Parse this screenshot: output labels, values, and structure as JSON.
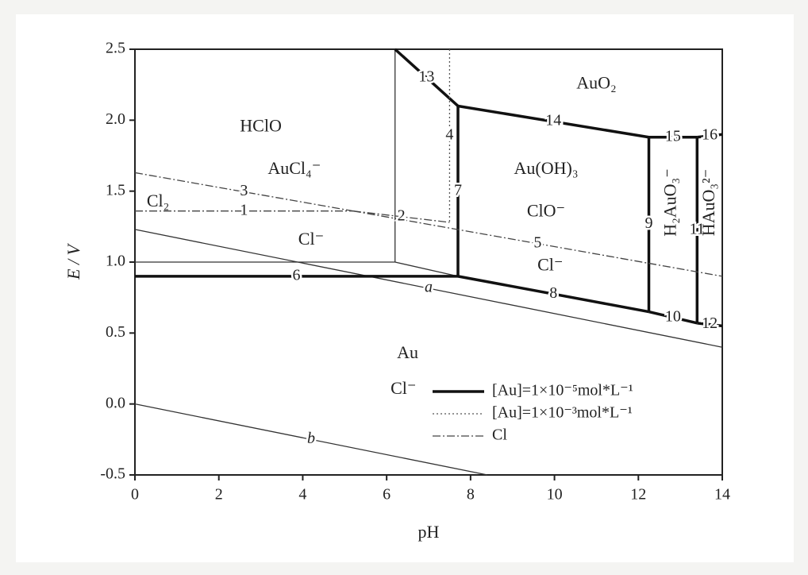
{
  "chart_data": {
    "type": "line",
    "xlabel": "pH",
    "ylabel": "E / V",
    "xlim": [
      0,
      14
    ],
    "ylim": [
      -0.5,
      2.5
    ],
    "xticks": [
      0,
      2,
      4,
      6,
      8,
      10,
      12,
      14
    ],
    "yticks": [
      2.5,
      {
        "value": 2,
        "label": "2.0"
      },
      1.5,
      {
        "value": 1,
        "label": "1.0"
      },
      0.5,
      {
        "value": 0,
        "label": "0.0"
      },
      -0.5
    ],
    "regions": [
      "HClO",
      "AuCl₄⁻",
      "Cl₂",
      "Cl⁻",
      "AuO₂",
      "Au(OH)₃",
      "ClO⁻",
      "Cl⁻",
      "Au",
      "Cl⁻",
      "H₂AuO₃⁻",
      "HAuO₃²⁻"
    ],
    "series": [
      {
        "name": "[Au]=1×10⁻⁵mol*L⁻¹",
        "color": "#111",
        "dash": "solid",
        "lines": [
          {
            "label": "6",
            "x": [
              0,
              7.7
            ],
            "y": [
              0.9,
              0.9
            ]
          },
          {
            "label": "13",
            "x": [
              6.2,
              7.7
            ],
            "y": [
              2.5,
              2.1
            ]
          },
          {
            "label": "7",
            "x": [
              7.7,
              7.7
            ],
            "y": [
              2.1,
              0.9
            ]
          },
          {
            "label": "14",
            "x": [
              7.7,
              12.25
            ],
            "y": [
              2.1,
              1.88
            ]
          },
          {
            "label": "9",
            "x": [
              12.25,
              12.25
            ],
            "y": [
              1.88,
              0.65
            ]
          },
          {
            "label": "8",
            "x": [
              7.7,
              12.25
            ],
            "y": [
              0.9,
              0.65
            ]
          },
          {
            "label": "10",
            "x": [
              12.25,
              13.4
            ],
            "y": [
              0.65,
              0.57
            ]
          },
          {
            "label": "11",
            "x": [
              13.4,
              13.4
            ],
            "y": [
              1.88,
              0.57
            ]
          },
          {
            "label": "15",
            "x": [
              12.25,
              13.4
            ],
            "y": [
              1.88,
              1.88
            ]
          },
          {
            "label": "16",
            "x": [
              13.4,
              14
            ],
            "y": [
              1.88,
              1.9
            ]
          },
          {
            "label": "12",
            "x": [
              13.4,
              14
            ],
            "y": [
              0.57,
              0.55
            ]
          }
        ]
      },
      {
        "name": "[Au]=1×10⁻³mol*L⁻¹",
        "color": "#555",
        "dash": "dot",
        "lines": [
          {
            "label": "4",
            "x": [
              7.5,
              7.5
            ],
            "y": [
              2.5,
              1.28
            ]
          }
        ]
      },
      {
        "name": "Cl",
        "color": "#444",
        "dash": "dashdot",
        "lines": [
          {
            "label": "1",
            "x": [
              0,
              5.2
            ],
            "y": [
              1.36,
              1.36
            ]
          },
          {
            "label": "2",
            "x": [
              5.2,
              7.5
            ],
            "y": [
              1.36,
              1.28
            ]
          },
          {
            "label": "3",
            "x": [
              0,
              5.2
            ],
            "y": [
              1.63,
              1.36
            ]
          },
          {
            "label": "5",
            "x": [
              5.2,
              14
            ],
            "y": [
              1.36,
              0.9
            ]
          }
        ]
      }
    ],
    "lines": [
      {
        "label": "a",
        "x": [
          0,
          14
        ],
        "y": [
          1.23,
          0.4
        ]
      },
      {
        "label": "b",
        "x": [
          0,
          8.4
        ],
        "y": [
          0,
          -0.5
        ]
      },
      {
        "x": [
          6.2,
          6.2
        ],
        "y": [
          2.5,
          1.0
        ]
      },
      {
        "x": [
          0,
          6.2
        ],
        "y": [
          1.0,
          1.0
        ]
      },
      {
        "x": [
          6.2,
          7.7
        ],
        "y": [
          1.0,
          0.9
        ]
      }
    ]
  }
}
